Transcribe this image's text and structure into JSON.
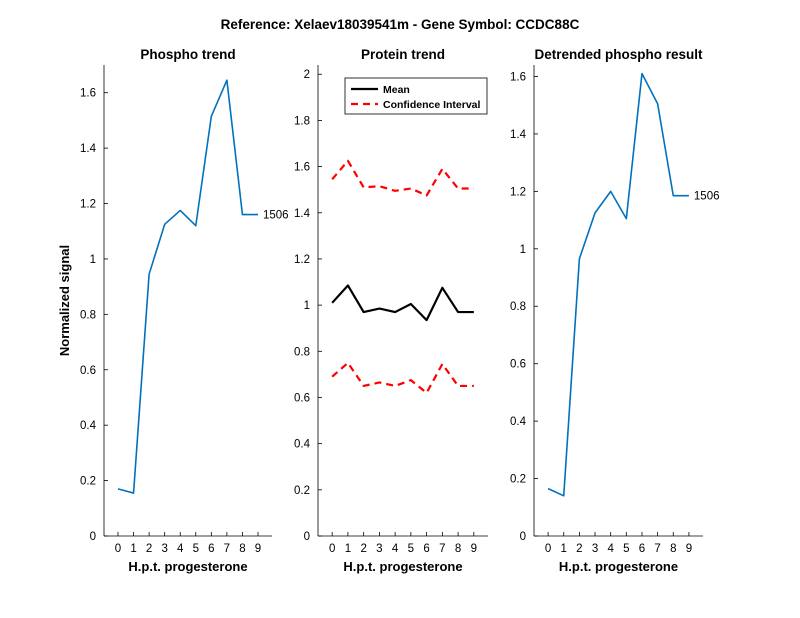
{
  "figure": {
    "title": "Reference:  Xelaev18039541m - Gene Symbol:  CCDC88C"
  },
  "colors": {
    "series_blue": "#0072BD",
    "mean": "#000000",
    "ci": "#FF0000"
  },
  "chart_data": [
    {
      "type": "line",
      "title": "Phospho trend",
      "xlabel": "H.p.t. progesterone",
      "ylabel": "Normalized signal",
      "xticks": [
        "0",
        "1",
        "2",
        "3",
        "4",
        "5",
        "6",
        "7",
        "8",
        "9"
      ],
      "yticks": [
        "0",
        "0.2",
        "0.4",
        "0.6",
        "0.8",
        "1",
        "1.2",
        "1.4",
        "1.6"
      ],
      "xlim": [
        -0.9,
        9.9
      ],
      "ylim": [
        0,
        1.7
      ],
      "series": [
        {
          "x": [
            0,
            1,
            2,
            3,
            4,
            5,
            6,
            7,
            8,
            9
          ],
          "values": [
            0.17,
            0.155,
            0.945,
            1.125,
            1.175,
            1.12,
            1.515,
            1.645,
            1.16,
            1.16
          ]
        }
      ],
      "end_label": "1506",
      "grid": false
    },
    {
      "type": "line",
      "title": "Protein trend",
      "xlabel": "H.p.t. progesterone",
      "ylabel": "",
      "xticks": [
        "0",
        "1",
        "2",
        "3",
        "4",
        "5",
        "6",
        "7",
        "8",
        "9"
      ],
      "yticks": [
        "0",
        "0.2",
        "0.4",
        "0.6",
        "0.8",
        "1",
        "1.2",
        "1.4",
        "1.6",
        "1.8",
        "2"
      ],
      "xlim": [
        -0.9,
        9.9
      ],
      "ylim": [
        0,
        2.04
      ],
      "series": [
        {
          "name": "Mean",
          "style": "solid",
          "x": [
            0,
            1,
            2,
            3,
            4,
            5,
            6,
            7,
            8,
            9
          ],
          "values": [
            1.01,
            1.085,
            0.97,
            0.985,
            0.97,
            1.005,
            0.935,
            1.075,
            0.97,
            0.97
          ]
        },
        {
          "name": "Confidence Interval",
          "style": "dashed",
          "x": [
            0,
            1,
            2,
            3,
            4,
            5,
            6,
            7,
            8,
            9
          ],
          "values": [
            1.545,
            1.625,
            1.51,
            1.515,
            1.495,
            1.505,
            1.475,
            1.59,
            1.505,
            1.505
          ]
        },
        {
          "name": "",
          "style": "dashed",
          "x": [
            0,
            1,
            2,
            3,
            4,
            5,
            6,
            7,
            8,
            9
          ],
          "values": [
            0.69,
            0.75,
            0.65,
            0.665,
            0.65,
            0.675,
            0.62,
            0.745,
            0.65,
            0.65
          ]
        }
      ],
      "legend": {
        "placement": "top-left",
        "entries": [
          "Mean",
          "Confidence Interval"
        ]
      },
      "grid": false
    },
    {
      "type": "line",
      "title": "Detrended phospho result",
      "xlabel": "H.p.t. progesterone",
      "ylabel": "",
      "xticks": [
        "0",
        "1",
        "2",
        "3",
        "4",
        "5",
        "6",
        "7",
        "8",
        "9"
      ],
      "yticks": [
        "0",
        "0.2",
        "0.4",
        "0.6",
        "0.8",
        "1",
        "1.2",
        "1.4",
        "1.6"
      ],
      "xlim": [
        -0.9,
        9.9
      ],
      "ylim": [
        0,
        1.64
      ],
      "series": [
        {
          "x": [
            0,
            1,
            2,
            3,
            4,
            5,
            6,
            7,
            8,
            9
          ],
          "values": [
            0.165,
            0.14,
            0.965,
            1.125,
            1.2,
            1.105,
            1.61,
            1.505,
            1.185,
            1.185
          ]
        }
      ],
      "end_label": "1506",
      "grid": false
    }
  ]
}
